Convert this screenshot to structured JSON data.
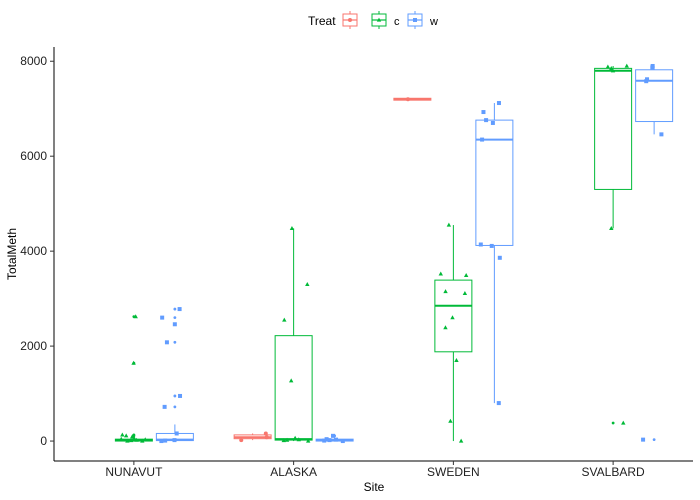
{
  "chart_data": {
    "type": "box",
    "xlabel": "Site",
    "ylabel": "TotalMeth",
    "ylim": [
      -420,
      8300
    ],
    "yticks": [
      0,
      2000,
      4000,
      6000,
      8000
    ],
    "categories": [
      "NUNAVUT",
      "ALASKA",
      "SWEDEN",
      "SVALBARD"
    ],
    "legend": {
      "title": "Treat",
      "position": "top",
      "entries": [
        {
          "name": "",
          "color": "#F8766D",
          "marker": "circle"
        },
        {
          "name": "c",
          "color": "#00BA38",
          "marker": "triangle"
        },
        {
          "name": "w",
          "color": "#619CFF",
          "marker": "square"
        }
      ]
    },
    "boxes": [
      {
        "category": "NUNAVUT",
        "treat": "c",
        "q1": 0,
        "median": 20,
        "q3": 40,
        "whisker_low": 0,
        "whisker_high": 90,
        "outliers": [
          1640,
          2620,
          130,
          110
        ]
      },
      {
        "category": "NUNAVUT",
        "treat": "w",
        "q1": 10,
        "median": 30,
        "q3": 160,
        "whisker_low": 0,
        "whisker_high": 350,
        "outliers": [
          2780,
          2600,
          2460,
          2080,
          950,
          720
        ]
      },
      {
        "category": "ALASKA",
        "treat": "",
        "q1": 50,
        "median": 80,
        "q3": 130,
        "whisker_low": 20,
        "whisker_high": 160,
        "outliers": []
      },
      {
        "category": "ALASKA",
        "treat": "c",
        "q1": 20,
        "median": 40,
        "q3": 2220,
        "whisker_low": 0,
        "whisker_high": 4480,
        "outliers": []
      },
      {
        "category": "ALASKA",
        "treat": "w",
        "q1": 0,
        "median": 20,
        "q3": 40,
        "whisker_low": 0,
        "whisker_high": 70,
        "outliers": [
          110
        ]
      },
      {
        "category": "SWEDEN",
        "treat": "",
        "q1": 7180,
        "median": 7200,
        "q3": 7220,
        "whisker_low": 7180,
        "whisker_high": 7220,
        "outliers": []
      },
      {
        "category": "SWEDEN",
        "treat": "c",
        "q1": 1880,
        "median": 2850,
        "q3": 3390,
        "whisker_low": 0,
        "whisker_high": 4550,
        "outliers": []
      },
      {
        "category": "SWEDEN",
        "treat": "w",
        "q1": 4120,
        "median": 6350,
        "q3": 6760,
        "whisker_low": 800,
        "whisker_high": 7120,
        "outliers": []
      },
      {
        "category": "SVALBARD",
        "treat": "c",
        "q1": 5300,
        "median": 7800,
        "q3": 7850,
        "whisker_low": 4480,
        "whisker_high": 7900,
        "outliers": [
          380
        ]
      },
      {
        "category": "SVALBARD",
        "treat": "w",
        "q1": 6730,
        "median": 7590,
        "q3": 7820,
        "whisker_low": 6460,
        "whisker_high": 7900,
        "outliers": [
          30
        ]
      }
    ],
    "points": [
      {
        "category": "NUNAVUT",
        "treat": "c",
        "values": [
          1640,
          2620,
          130,
          110,
          90,
          60,
          40,
          30,
          20,
          10,
          0,
          0
        ]
      },
      {
        "category": "NUNAVUT",
        "treat": "w",
        "values": [
          2780,
          2600,
          2460,
          2080,
          950,
          720,
          160,
          20,
          10,
          0
        ]
      },
      {
        "category": "ALASKA",
        "treat": "",
        "values": [
          160,
          80,
          20
        ]
      },
      {
        "category": "ALASKA",
        "treat": "c",
        "values": [
          4480,
          3300,
          2550,
          1270,
          60,
          30,
          20,
          10,
          0
        ]
      },
      {
        "category": "ALASKA",
        "treat": "w",
        "values": [
          110,
          40,
          30,
          20,
          10,
          0
        ]
      },
      {
        "category": "SWEDEN",
        "treat": "",
        "values": [
          7200
        ]
      },
      {
        "category": "SWEDEN",
        "treat": "c",
        "values": [
          4550,
          3520,
          3490,
          3150,
          3110,
          2600,
          2390,
          1700,
          420,
          0
        ]
      },
      {
        "category": "SWEDEN",
        "treat": "w",
        "values": [
          7120,
          6930,
          6760,
          6700,
          6350,
          4140,
          4110,
          3860,
          800
        ]
      },
      {
        "category": "SVALBARD",
        "treat": "c",
        "values": [
          7900,
          7880,
          7850,
          7800,
          4480,
          380
        ]
      },
      {
        "category": "SVALBARD",
        "treat": "w",
        "values": [
          7900,
          7870,
          7620,
          7580,
          6460,
          30
        ]
      }
    ]
  }
}
